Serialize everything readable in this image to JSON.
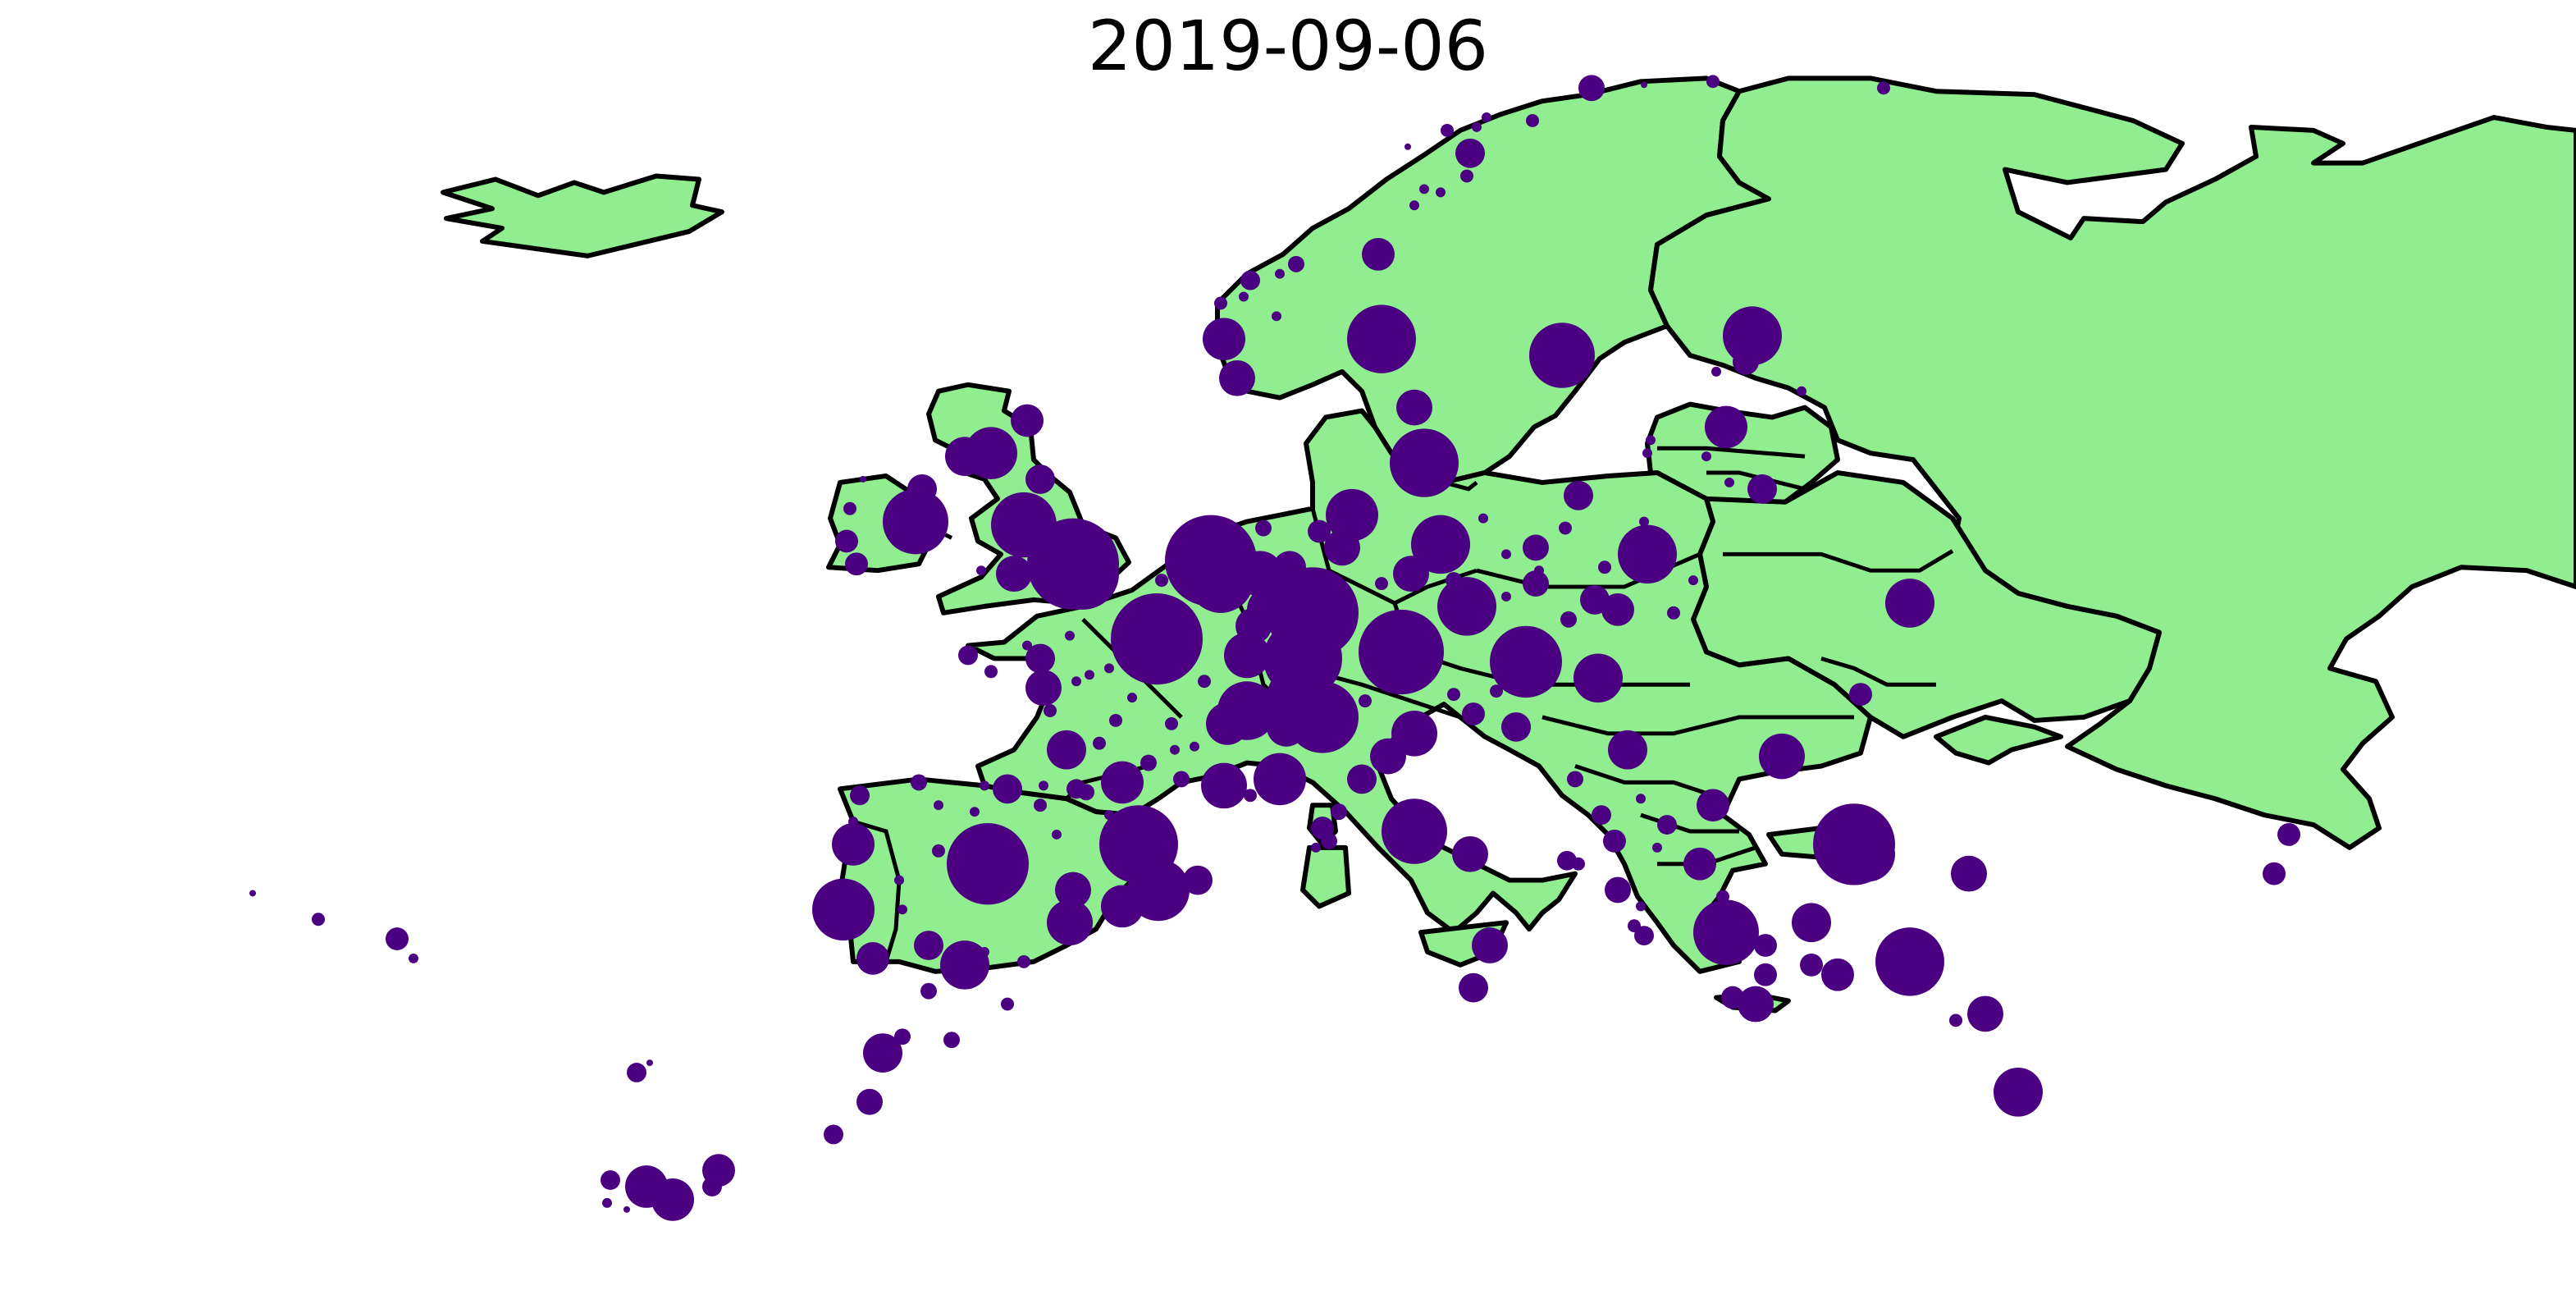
{
  "title": "2019-09-06",
  "colors": {
    "land": "#90ee90",
    "marker": "#4b0082",
    "border": "#000000",
    "background": "#ffffff"
  },
  "map": {
    "region": "Europe",
    "marker_type": "proportional circles"
  }
}
